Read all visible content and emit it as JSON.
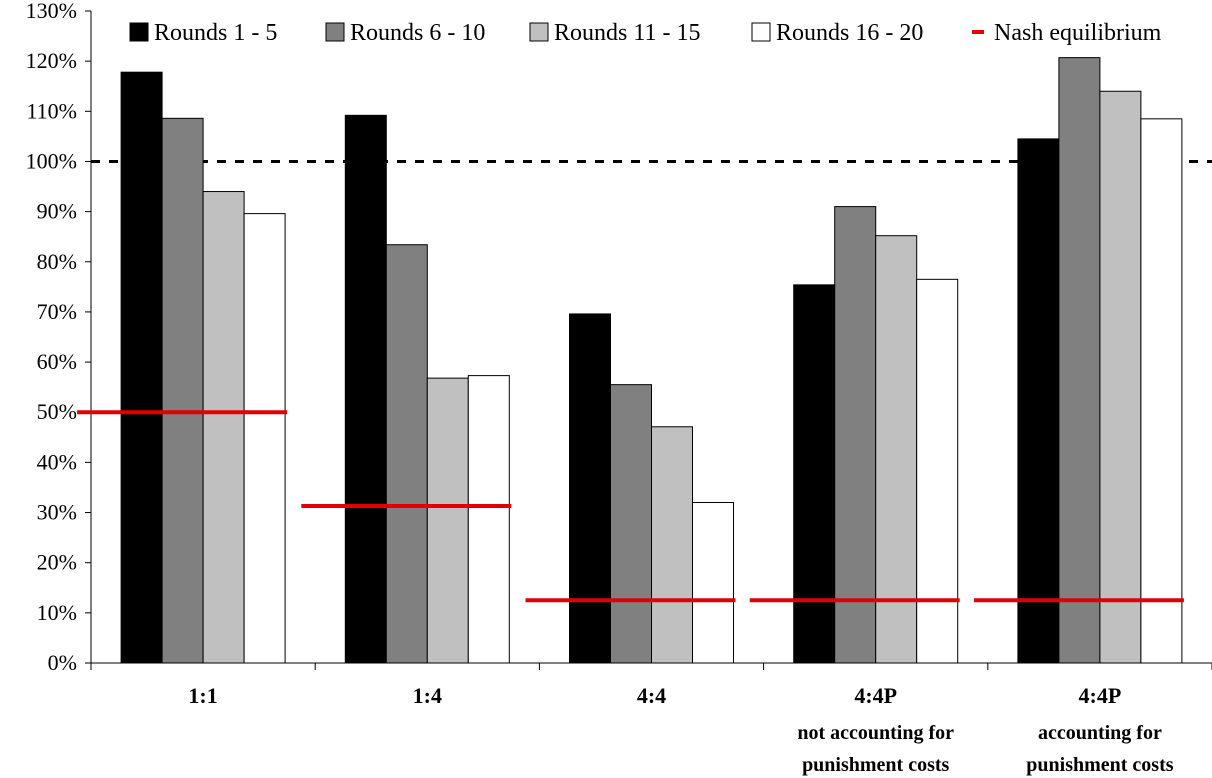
{
  "chart_data": {
    "type": "bar",
    "categories": [
      {
        "label": "1:1",
        "sub": []
      },
      {
        "label": "1:4",
        "sub": []
      },
      {
        "label": "4:4",
        "sub": []
      },
      {
        "label": "4:4P",
        "sub": [
          "not accounting for",
          "punishment costs"
        ]
      },
      {
        "label": "4:4P",
        "sub": [
          "accounting for",
          "punishment costs"
        ]
      }
    ],
    "series": [
      {
        "name": "Rounds 1 - 5",
        "color": "#000000",
        "values": [
          117.8,
          109.2,
          69.6,
          75.4,
          104.5
        ]
      },
      {
        "name": "Rounds 6 - 10",
        "color": "#808080",
        "values": [
          108.6,
          83.4,
          55.5,
          91.0,
          120.7
        ]
      },
      {
        "name": "Rounds 11 - 15",
        "color": "#c0c0c0",
        "values": [
          94.0,
          56.8,
          47.1,
          85.2,
          114.0
        ]
      },
      {
        "name": "Rounds 16 - 20",
        "color": "#ffffff",
        "values": [
          89.6,
          57.3,
          32.0,
          76.5,
          108.5
        ]
      }
    ],
    "nash": {
      "name": "Nash equilibrium",
      "color": "#e00000",
      "values": [
        50.0,
        31.3,
        12.5,
        12.5,
        12.5
      ]
    },
    "reference_line": {
      "value": 100,
      "style": "dashed",
      "color": "#000000"
    },
    "ylim": [
      0,
      130
    ],
    "yticks": [
      "0%",
      "10%",
      "20%",
      "30%",
      "40%",
      "50%",
      "60%",
      "70%",
      "80%",
      "90%",
      "100%",
      "110%",
      "120%",
      "130%"
    ],
    "legend_position": "top",
    "grid": false,
    "title": "",
    "xlabel": "",
    "ylabel": ""
  }
}
